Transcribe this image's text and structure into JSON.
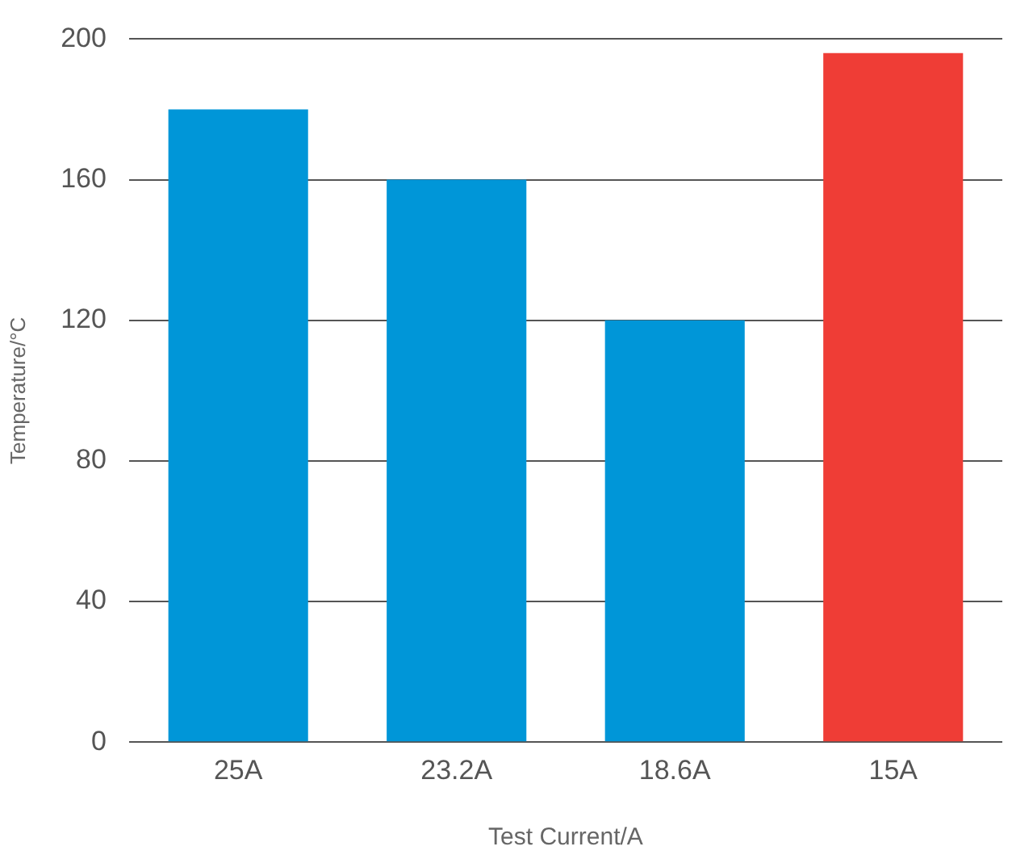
{
  "chart_data": {
    "type": "bar",
    "xlabel": "Test Current/A",
    "ylabel": "Temperature/°C",
    "categories": [
      "25A",
      "23.2A",
      "18.6A",
      "15A"
    ],
    "values": [
      180,
      160,
      120,
      196
    ],
    "colors": [
      "#0096d8",
      "#0096d8",
      "#0096d8",
      "#ef3d36"
    ],
    "ylim": [
      0,
      200
    ],
    "yticks": [
      0,
      40,
      80,
      120,
      160,
      200
    ],
    "grid": "y"
  }
}
